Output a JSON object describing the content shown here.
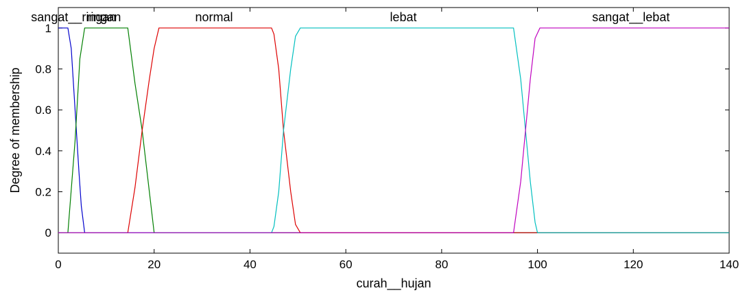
{
  "chart_data": {
    "type": "line",
    "xlabel": "curah__hujan",
    "ylabel": "Degree of membership",
    "xlim": [
      0,
      140
    ],
    "ylim": [
      -0.1,
      1.1
    ],
    "x_ticks": [
      0,
      20,
      40,
      60,
      80,
      100,
      120,
      140
    ],
    "y_ticks": [
      0,
      0.2,
      0.4,
      0.6,
      0.8,
      1
    ],
    "series": [
      {
        "name": "sangat__ringan",
        "color": "#0000cc",
        "label_x": 3.2,
        "points": [
          [
            0,
            1
          ],
          [
            2,
            1
          ],
          [
            2.7,
            0.9
          ],
          [
            3.5,
            0.6
          ],
          [
            4.3,
            0.3
          ],
          [
            4.8,
            0.13
          ],
          [
            5.5,
            0
          ],
          [
            140,
            0
          ]
        ]
      },
      {
        "name": "ringan",
        "color": "#007f00",
        "label_x": 9.5,
        "points": [
          [
            0,
            0
          ],
          [
            2,
            0
          ],
          [
            3.5,
            0.45
          ],
          [
            4.5,
            0.85
          ],
          [
            5.5,
            1
          ],
          [
            14.5,
            1
          ],
          [
            16,
            0.73
          ],
          [
            17.5,
            0.5
          ],
          [
            19,
            0.2
          ],
          [
            20,
            0
          ],
          [
            140,
            0
          ]
        ]
      },
      {
        "name": "normal",
        "color": "#dd0000",
        "label_x": 32.5,
        "points": [
          [
            0,
            0
          ],
          [
            14.5,
            0
          ],
          [
            16,
            0.22
          ],
          [
            17.5,
            0.5
          ],
          [
            19,
            0.75
          ],
          [
            20,
            0.9
          ],
          [
            21,
            1
          ],
          [
            44.5,
            1
          ],
          [
            45,
            0.97
          ],
          [
            46,
            0.8
          ],
          [
            47,
            0.5
          ],
          [
            48.5,
            0.2
          ],
          [
            49.5,
            0.04
          ],
          [
            50.5,
            0
          ],
          [
            140,
            0
          ]
        ]
      },
      {
        "name": "lebat",
        "color": "#00bfbf",
        "label_x": 72,
        "points": [
          [
            0,
            0
          ],
          [
            44.5,
            0
          ],
          [
            45,
            0.03
          ],
          [
            46,
            0.2
          ],
          [
            47,
            0.5
          ],
          [
            48.5,
            0.8
          ],
          [
            49.5,
            0.96
          ],
          [
            50.5,
            1
          ],
          [
            95,
            1
          ],
          [
            96.5,
            0.75
          ],
          [
            97.5,
            0.5
          ],
          [
            98.5,
            0.25
          ],
          [
            99.5,
            0.05
          ],
          [
            100,
            0
          ],
          [
            140,
            0
          ]
        ]
      },
      {
        "name": "sangat__lebat",
        "color": "#bf00bf",
        "label_x": 119.5,
        "points": [
          [
            0,
            0
          ],
          [
            95,
            0
          ],
          [
            96.5,
            0.25
          ],
          [
            97.5,
            0.5
          ],
          [
            98.5,
            0.75
          ],
          [
            99.5,
            0.95
          ],
          [
            100.5,
            1
          ],
          [
            140,
            1
          ]
        ]
      }
    ]
  }
}
